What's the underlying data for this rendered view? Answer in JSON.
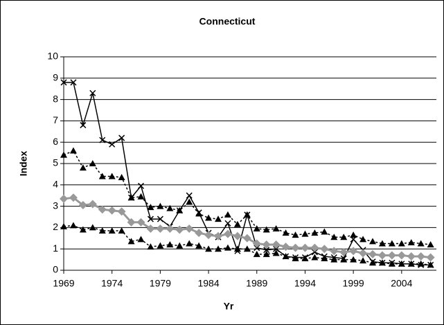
{
  "chart_data": {
    "type": "line",
    "title": "Connecticut",
    "x_label": "Yr",
    "y_label": "Index",
    "x": [
      1969,
      1970,
      1971,
      1972,
      1973,
      1974,
      1975,
      1976,
      1977,
      1978,
      1979,
      1980,
      1981,
      1982,
      1983,
      1984,
      1985,
      1986,
      1987,
      1988,
      1989,
      1990,
      1991,
      1992,
      1993,
      1994,
      1995,
      1996,
      1997,
      1998,
      1999,
      2000,
      2001,
      2002,
      2003,
      2004,
      2005,
      2006,
      2007
    ],
    "xlim": [
      1969,
      2007.6
    ],
    "xticks": [
      1969,
      1974,
      1979,
      1984,
      1989,
      1994,
      1999,
      2004
    ],
    "ylim": [
      0,
      10
    ],
    "yticks": [
      0,
      1,
      2,
      3,
      4,
      5,
      6,
      7,
      8,
      9,
      10
    ],
    "grid": true,
    "series": [
      {
        "color": "#000000",
        "marker": "x",
        "dash": false,
        "values": [
          8.8,
          8.8,
          6.8,
          8.3,
          6.1,
          5.9,
          6.2,
          3.4,
          3.95,
          2.4,
          2.4,
          2.05,
          2.8,
          3.5,
          2.7,
          1.75,
          1.55,
          2.2,
          0.9,
          2.6,
          1.05,
          0.95,
          1.0,
          0.65,
          0.6,
          0.6,
          0.85,
          0.65,
          0.6,
          0.55,
          1.45,
          0.95,
          0.4,
          0.35,
          0.35,
          0.3,
          0.3,
          0.25,
          0.25
        ]
      },
      {
        "color": "#000000",
        "marker": "triangle",
        "dash": true,
        "values": [
          5.4,
          5.6,
          4.8,
          5.0,
          4.4,
          4.4,
          4.35,
          3.4,
          3.45,
          2.95,
          3.0,
          2.9,
          2.8,
          3.2,
          2.65,
          2.45,
          2.4,
          2.6,
          2.15,
          2.6,
          1.95,
          1.9,
          1.95,
          1.75,
          1.65,
          1.7,
          1.75,
          1.8,
          1.55,
          1.55,
          1.65,
          1.45,
          1.35,
          1.25,
          1.25,
          1.25,
          1.3,
          1.25,
          1.2
        ]
      },
      {
        "color": "#999999",
        "marker": "diamond",
        "dash": false,
        "values": [
          3.35,
          3.4,
          3.05,
          3.1,
          2.85,
          2.8,
          2.75,
          2.25,
          2.25,
          1.95,
          1.95,
          1.95,
          1.9,
          1.95,
          1.75,
          1.65,
          1.6,
          1.7,
          1.6,
          1.5,
          1.25,
          1.2,
          1.2,
          1.1,
          1.05,
          1.05,
          1.05,
          1.0,
          0.9,
          0.85,
          0.9,
          0.8,
          0.75,
          0.7,
          0.7,
          0.7,
          0.65,
          0.65,
          0.6
        ]
      },
      {
        "color": "#000000",
        "marker": "triangle",
        "dash": true,
        "values": [
          2.05,
          2.1,
          1.9,
          2.0,
          1.85,
          1.85,
          1.85,
          1.35,
          1.45,
          1.1,
          1.15,
          1.2,
          1.15,
          1.25,
          1.15,
          1.0,
          1.0,
          1.05,
          1.0,
          1.0,
          0.75,
          0.75,
          0.8,
          0.65,
          0.55,
          0.55,
          0.6,
          0.55,
          0.5,
          0.5,
          0.5,
          0.45,
          0.35,
          0.35,
          0.3,
          0.3,
          0.3,
          0.3,
          0.25
        ]
      }
    ]
  }
}
